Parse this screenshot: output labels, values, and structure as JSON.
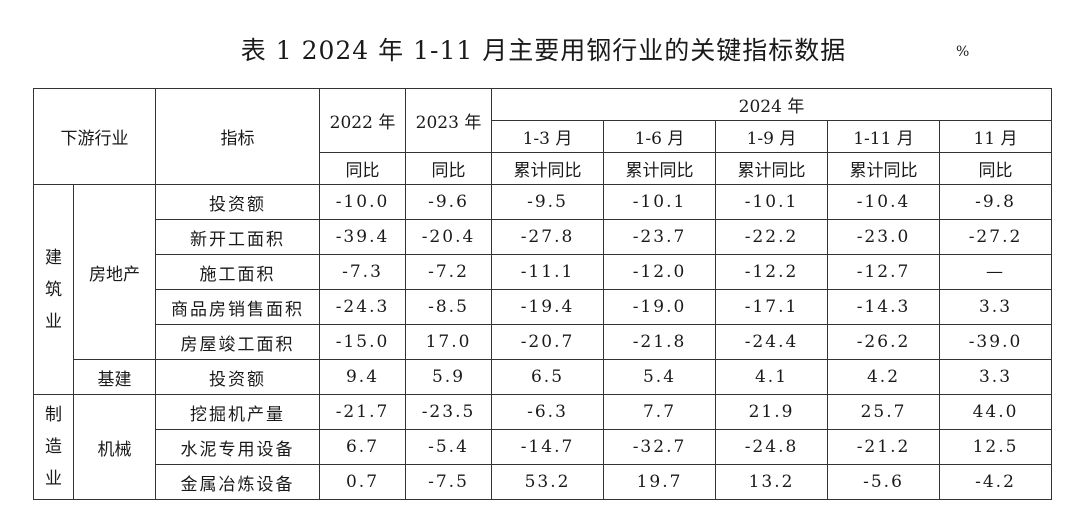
{
  "title": "表 1 2024 年 1-11 月主要用钢行业的关键指标数据",
  "unit": "%",
  "header": {
    "industry": "下游行业",
    "indicator": "指标",
    "y2022": "2022 年",
    "y2023": "2023 年",
    "y2024": "2024 年",
    "periods": [
      "1-3 月",
      "1-6 月",
      "1-9 月",
      "1-11 月",
      "11 月"
    ],
    "sub": [
      "同比",
      "同比",
      "累计同比",
      "累计同比",
      "累计同比",
      "累计同比",
      "同比"
    ]
  },
  "groups": {
    "construction": [
      "建",
      "筑",
      "业"
    ],
    "manufacturing": [
      "制",
      "造",
      "业"
    ],
    "real_estate": "房地产",
    "infrastructure": "基建",
    "machinery": "机械"
  },
  "rows": [
    {
      "indicator": "投资额",
      "values": [
        "-10.0",
        "-9.6",
        "-9.5",
        "-10.1",
        "-10.1",
        "-10.4",
        "-9.8"
      ]
    },
    {
      "indicator": "新开工面积",
      "values": [
        "-39.4",
        "-20.4",
        "-27.8",
        "-23.7",
        "-22.2",
        "-23.0",
        "-27.2"
      ]
    },
    {
      "indicator": "施工面积",
      "values": [
        "-7.3",
        "-7.2",
        "-11.1",
        "-12.0",
        "-12.2",
        "-12.7",
        "—"
      ]
    },
    {
      "indicator": "商品房销售面积",
      "values": [
        "-24.3",
        "-8.5",
        "-19.4",
        "-19.0",
        "-17.1",
        "-14.3",
        "3.3"
      ]
    },
    {
      "indicator": "房屋竣工面积",
      "values": [
        "-15.0",
        "17.0",
        "-20.7",
        "-21.8",
        "-24.4",
        "-26.2",
        "-39.0"
      ]
    },
    {
      "indicator": "投资额",
      "values": [
        "9.4",
        "5.9",
        "6.5",
        "5.4",
        "4.1",
        "4.2",
        "3.3"
      ]
    },
    {
      "indicator": "挖掘机产量",
      "values": [
        "-21.7",
        "-23.5",
        "-6.3",
        "7.7",
        "21.9",
        "25.7",
        "44.0"
      ]
    },
    {
      "indicator": "水泥专用设备",
      "values": [
        "6.7",
        "-5.4",
        "-14.7",
        "-32.7",
        "-24.8",
        "-21.2",
        "12.5"
      ]
    },
    {
      "indicator": "金属冶炼设备",
      "values": [
        "0.7",
        "-7.5",
        "53.2",
        "19.7",
        "13.2",
        "-5.6",
        "-4.2"
      ]
    }
  ]
}
